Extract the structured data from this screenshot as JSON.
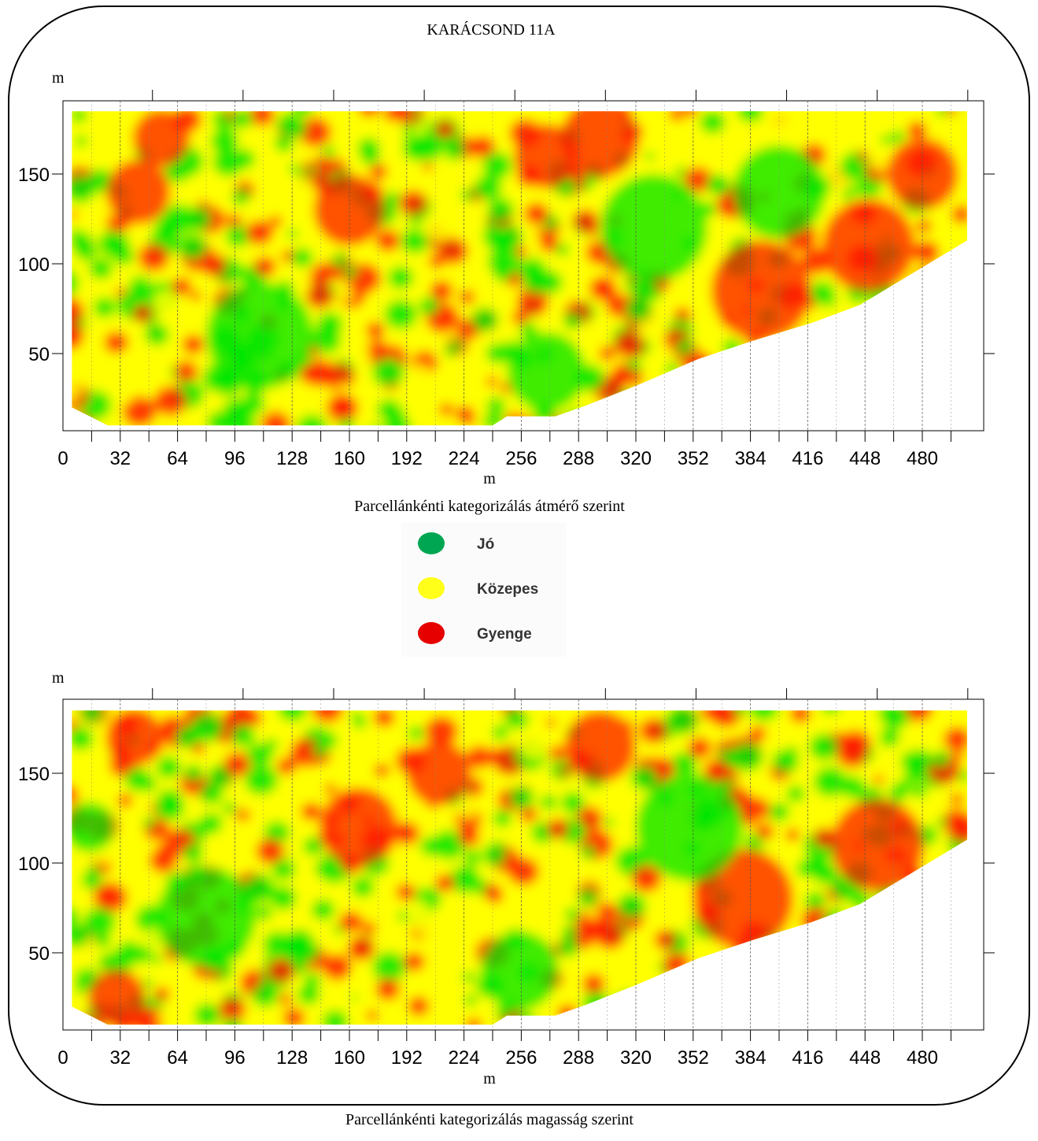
{
  "title": "KARÁCSOND 11A",
  "colors": {
    "good": "#00e600",
    "medium": "#ffff00",
    "poor": "#ff1a00"
  },
  "legend": {
    "items": [
      {
        "label": "Jó",
        "color": "#00a651"
      },
      {
        "label": "Közepes",
        "color": "#ffff1a"
      },
      {
        "label": "Gyenge",
        "color": "#e60000"
      }
    ]
  },
  "chart_data": [
    {
      "type": "heatmap",
      "title": "",
      "subtitle": "Parcellánkénti kategorizálás átmérő szerint",
      "xlabel": "m",
      "ylabel": "m",
      "xlim": [
        0,
        512
      ],
      "ylim": [
        0,
        190
      ],
      "x_ticks": [
        "0",
        "32",
        "64",
        "96",
        "128",
        "160",
        "192",
        "224",
        "256",
        "288",
        "320",
        "352",
        "384",
        "416",
        "448",
        "480"
      ],
      "y_ticks": [
        "50",
        "100",
        "150"
      ],
      "categories": [
        "Jó",
        "Közepes",
        "Gyenge"
      ],
      "boundary": [
        [
          5,
          185
        ],
        [
          505,
          185
        ],
        [
          505,
          113
        ],
        [
          445,
          77
        ],
        [
          418,
          67
        ],
        [
          385,
          57
        ],
        [
          355,
          47
        ],
        [
          320,
          32
        ],
        [
          292,
          21
        ],
        [
          275,
          15
        ],
        [
          248,
          15
        ],
        [
          240,
          10
        ],
        [
          25,
          10
        ],
        [
          15,
          15
        ],
        [
          5,
          20
        ]
      ],
      "zones": [
        {
          "x": 42,
          "y": 140,
          "r": 18,
          "category": "Gyenge"
        },
        {
          "x": 55,
          "y": 170,
          "r": 16,
          "category": "Gyenge"
        },
        {
          "x": 160,
          "y": 130,
          "r": 20,
          "category": "Gyenge"
        },
        {
          "x": 300,
          "y": 170,
          "r": 22,
          "category": "Gyenge"
        },
        {
          "x": 270,
          "y": 160,
          "r": 18,
          "category": "Gyenge"
        },
        {
          "x": 390,
          "y": 85,
          "r": 28,
          "category": "Gyenge"
        },
        {
          "x": 450,
          "y": 110,
          "r": 26,
          "category": "Gyenge"
        },
        {
          "x": 480,
          "y": 150,
          "r": 20,
          "category": "Gyenge"
        },
        {
          "x": 110,
          "y": 60,
          "r": 30,
          "category": "Jó"
        },
        {
          "x": 330,
          "y": 120,
          "r": 30,
          "category": "Jó"
        },
        {
          "x": 400,
          "y": 140,
          "r": 26,
          "category": "Jó"
        },
        {
          "x": 270,
          "y": 40,
          "r": 22,
          "category": "Jó"
        }
      ]
    },
    {
      "type": "heatmap",
      "title": "",
      "subtitle": "Parcellánkénti kategorizálás magasság szerint",
      "xlabel": "m",
      "ylabel": "m",
      "xlim": [
        0,
        512
      ],
      "ylim": [
        0,
        190
      ],
      "x_ticks": [
        "0",
        "32",
        "64",
        "96",
        "128",
        "160",
        "192",
        "224",
        "256",
        "288",
        "320",
        "352",
        "384",
        "416",
        "448",
        "480"
      ],
      "y_ticks": [
        "50",
        "100",
        "150"
      ],
      "categories": [
        "Jó",
        "Közepes",
        "Gyenge"
      ],
      "boundary": [
        [
          5,
          185
        ],
        [
          505,
          185
        ],
        [
          505,
          113
        ],
        [
          445,
          77
        ],
        [
          418,
          67
        ],
        [
          385,
          57
        ],
        [
          355,
          47
        ],
        [
          320,
          32
        ],
        [
          292,
          21
        ],
        [
          275,
          15
        ],
        [
          248,
          15
        ],
        [
          240,
          10
        ],
        [
          25,
          10
        ],
        [
          15,
          15
        ],
        [
          5,
          20
        ]
      ],
      "zones": [
        {
          "x": 40,
          "y": 170,
          "r": 16,
          "category": "Gyenge"
        },
        {
          "x": 30,
          "y": 25,
          "r": 16,
          "category": "Gyenge"
        },
        {
          "x": 165,
          "y": 120,
          "r": 22,
          "category": "Gyenge"
        },
        {
          "x": 210,
          "y": 150,
          "r": 18,
          "category": "Gyenge"
        },
        {
          "x": 300,
          "y": 165,
          "r": 20,
          "category": "Gyenge"
        },
        {
          "x": 380,
          "y": 80,
          "r": 28,
          "category": "Gyenge"
        },
        {
          "x": 455,
          "y": 110,
          "r": 26,
          "category": "Gyenge"
        },
        {
          "x": 80,
          "y": 70,
          "r": 28,
          "category": "Jó"
        },
        {
          "x": 350,
          "y": 120,
          "r": 30,
          "category": "Jó"
        },
        {
          "x": 255,
          "y": 40,
          "r": 22,
          "category": "Jó"
        },
        {
          "x": 15,
          "y": 120,
          "r": 14,
          "category": "Jó"
        }
      ]
    }
  ]
}
